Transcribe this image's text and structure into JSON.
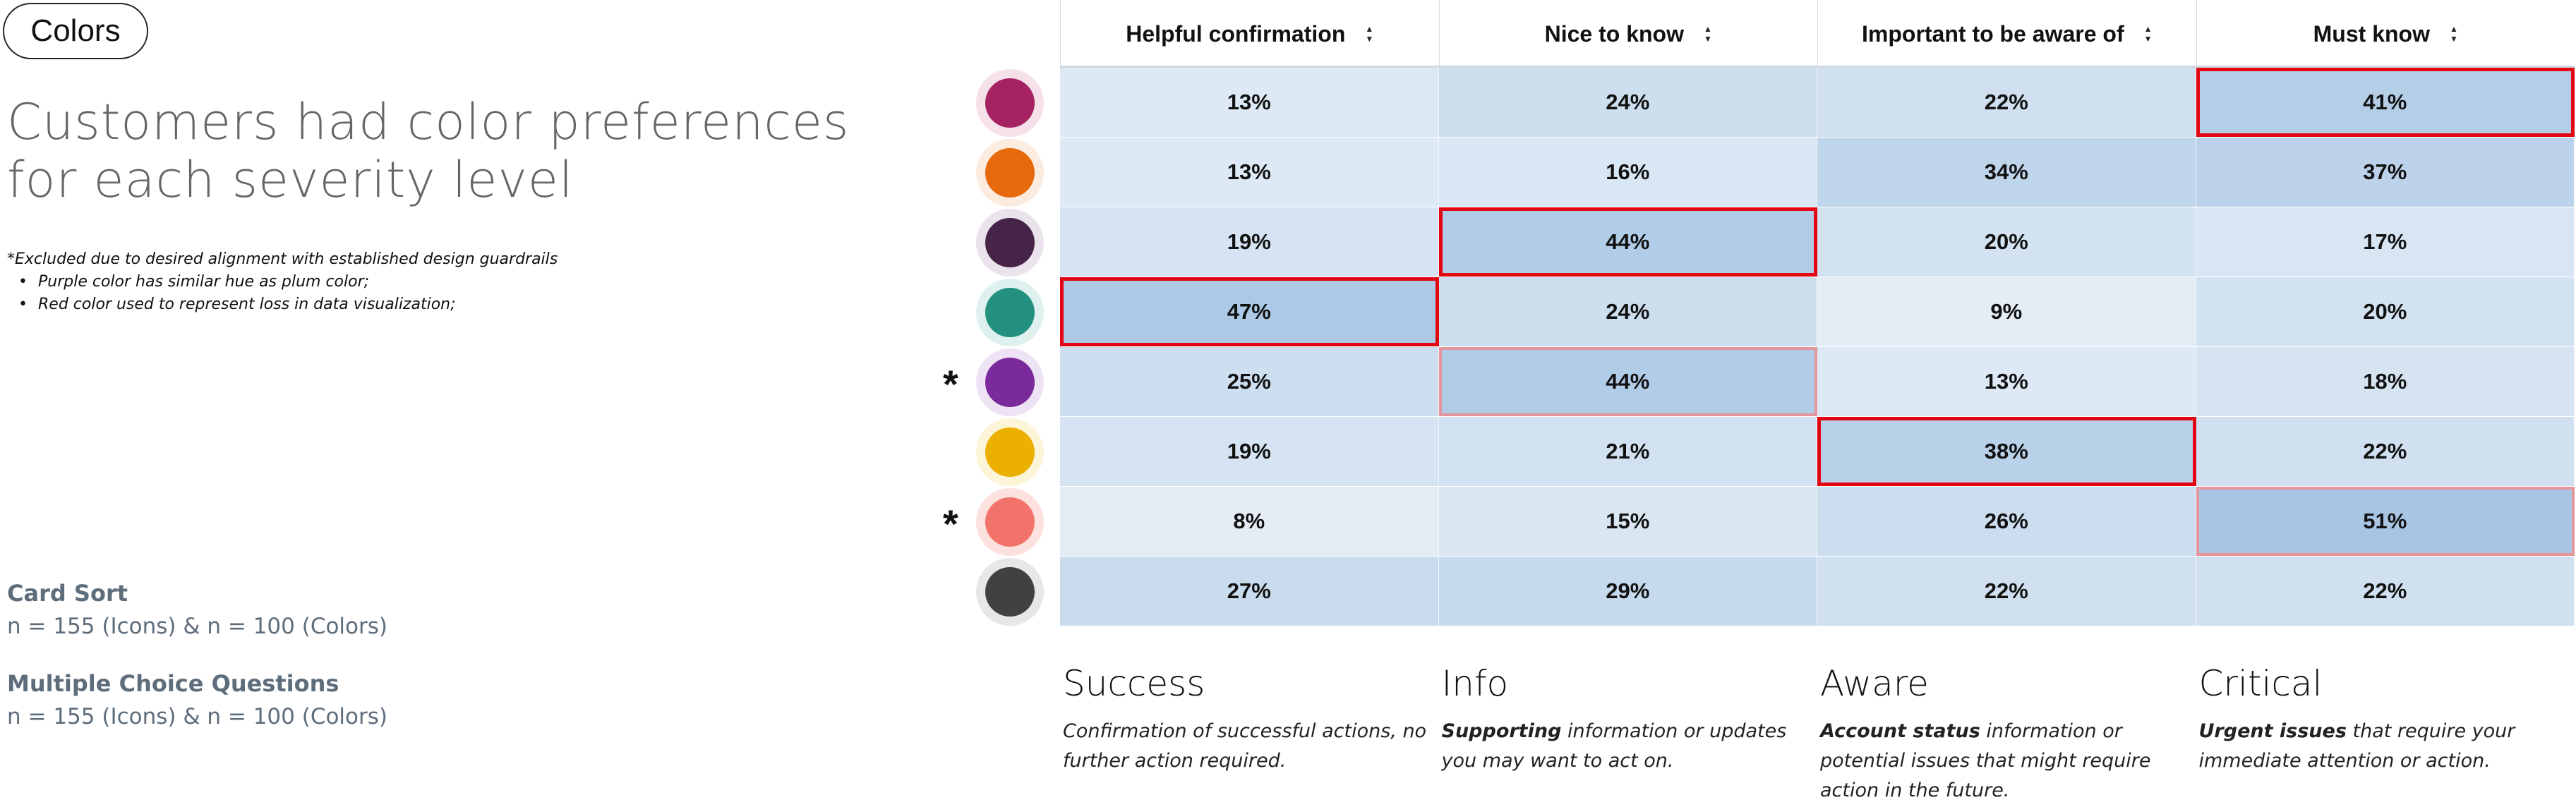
{
  "badge": "Colors",
  "headline": [
    "Customers had color preferences",
    "for each severity level"
  ],
  "footnote": {
    "title": "*Excluded due to desired alignment with established design guardrails",
    "bullets": [
      "Purple color has similar hue as plum color;",
      "Red color used to represent loss in data visualization;"
    ]
  },
  "meta": [
    {
      "label": "Card Sort",
      "value": "n = 155 (Icons) & n = 100 (Colors)"
    },
    {
      "label": "Multiple Choice Questions",
      "value": "n = 155 (Icons) & n = 100 (Colors)"
    }
  ],
  "table": {
    "columns": [
      "Helpful confirmation",
      "Nice to know",
      "Important to be aware of",
      "Must know"
    ],
    "rows": [
      {
        "color": "#a62363",
        "halo": "#f6e1ea",
        "excluded": false,
        "values": [
          "13%",
          "24%",
          "22%",
          "41%"
        ],
        "highlight": [
          null,
          null,
          null,
          "strong"
        ]
      },
      {
        "color": "#e66a0c",
        "halo": "#fcebdf",
        "excluded": false,
        "values": [
          "13%",
          "16%",
          "34%",
          "37%"
        ],
        "highlight": [
          null,
          null,
          null,
          null
        ]
      },
      {
        "color": "#452448",
        "halo": "#eae3ec",
        "excluded": false,
        "values": [
          "19%",
          "44%",
          "20%",
          "17%"
        ],
        "highlight": [
          null,
          "strong",
          null,
          null
        ]
      },
      {
        "color": "#24907f",
        "halo": "#dff1ee",
        "excluded": false,
        "values": [
          "47%",
          "24%",
          "9%",
          "20%"
        ],
        "highlight": [
          "strong",
          null,
          null,
          null
        ]
      },
      {
        "color": "#7a2a9a",
        "halo": "#eee3f4",
        "excluded": true,
        "values": [
          "25%",
          "44%",
          "13%",
          "18%"
        ],
        "highlight": [
          null,
          "faded",
          null,
          null
        ]
      },
      {
        "color": "#ebb000",
        "halo": "#fdf5d8",
        "excluded": false,
        "values": [
          "19%",
          "21%",
          "38%",
          "22%"
        ],
        "highlight": [
          null,
          null,
          "strong",
          null
        ]
      },
      {
        "color": "#f2736a",
        "halo": "#fde1de",
        "excluded": true,
        "values": [
          "8%",
          "15%",
          "26%",
          "51%"
        ],
        "highlight": [
          null,
          null,
          null,
          "faded"
        ]
      },
      {
        "color": "#414141",
        "halo": "#e7e7e7",
        "excluded": false,
        "values": [
          "27%",
          "29%",
          "22%",
          "22%"
        ],
        "highlight": [
          null,
          null,
          null,
          null
        ]
      }
    ]
  },
  "legend": [
    {
      "title": "Success",
      "bold": "",
      "text": "Confirmation of successful actions, no further action required."
    },
    {
      "title": "Info",
      "bold": "Supporting",
      "text": " information or updates you may want to act on."
    },
    {
      "title": "Aware",
      "bold": "Account status",
      "text": " information or potential issues that might require action in the future."
    },
    {
      "title": "Critical",
      "bold": "Urgent issues",
      "text": " that require your immediate attention or action."
    }
  ]
}
